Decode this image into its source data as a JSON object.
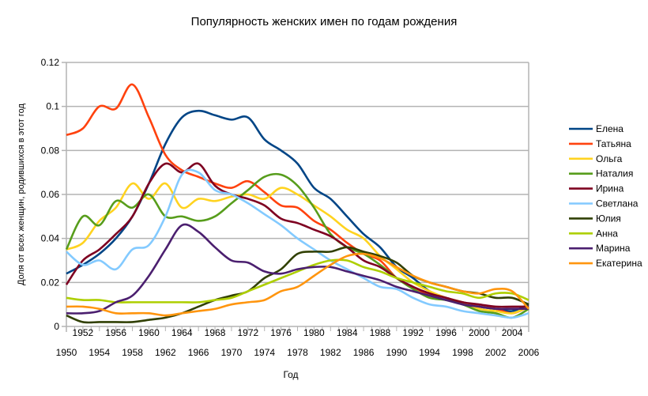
{
  "chart_data": {
    "type": "line",
    "title": "Популярность женских имен по годам рождения",
    "xlabel": "Год",
    "ylabel": "Доля от всех женщин, родившихся в этот год",
    "xlim": [
      1950,
      2006
    ],
    "ylim": [
      0,
      0.12
    ],
    "yticks": [
      "0",
      "0.02",
      "0.04",
      "0.06",
      "0.08",
      "0.1",
      "0.12"
    ],
    "xticks": [
      "1950",
      "1952",
      "1954",
      "1956",
      "1958",
      "1960",
      "1962",
      "1964",
      "1966",
      "1968",
      "1970",
      "1972",
      "1974",
      "1976",
      "1978",
      "1980",
      "1982",
      "1984",
      "1986",
      "1988",
      "1990",
      "1992",
      "1994",
      "1996",
      "1998",
      "2000",
      "2002",
      "2004",
      "2006"
    ],
    "grid": true,
    "legend_position": "right",
    "x": [
      1950,
      1952,
      1954,
      1956,
      1958,
      1960,
      1962,
      1964,
      1966,
      1968,
      1970,
      1972,
      1974,
      1976,
      1978,
      1980,
      1982,
      1984,
      1986,
      1988,
      1990,
      1992,
      1994,
      1996,
      1998,
      2000,
      2002,
      2004,
      2006
    ],
    "series": [
      {
        "name": "Елена",
        "color": "#004586",
        "values": [
          0.024,
          0.028,
          0.033,
          0.04,
          0.05,
          0.065,
          0.083,
          0.095,
          0.098,
          0.096,
          0.094,
          0.095,
          0.085,
          0.08,
          0.074,
          0.063,
          0.058,
          0.05,
          0.042,
          0.036,
          0.027,
          0.022,
          0.016,
          0.013,
          0.011,
          0.009,
          0.008,
          0.007,
          0.01
        ]
      },
      {
        "name": "Татьяна",
        "color": "#ff420e",
        "values": [
          0.087,
          0.09,
          0.1,
          0.099,
          0.11,
          0.095,
          0.078,
          0.071,
          0.068,
          0.065,
          0.063,
          0.066,
          0.061,
          0.055,
          0.054,
          0.048,
          0.044,
          0.038,
          0.033,
          0.03,
          0.022,
          0.018,
          0.014,
          0.012,
          0.011,
          0.009,
          0.008,
          0.006,
          0.009
        ]
      },
      {
        "name": "Ольга",
        "color": "#ffd320",
        "values": [
          0.035,
          0.038,
          0.048,
          0.054,
          0.065,
          0.058,
          0.065,
          0.054,
          0.058,
          0.057,
          0.059,
          0.06,
          0.058,
          0.063,
          0.06,
          0.055,
          0.05,
          0.044,
          0.04,
          0.032,
          0.026,
          0.02,
          0.016,
          0.013,
          0.011,
          0.008,
          0.007,
          0.006,
          0.009
        ]
      },
      {
        "name": "Наталия",
        "color": "#579d1c",
        "values": [
          0.035,
          0.05,
          0.046,
          0.057,
          0.054,
          0.06,
          0.05,
          0.05,
          0.048,
          0.05,
          0.056,
          0.062,
          0.068,
          0.069,
          0.064,
          0.054,
          0.042,
          0.036,
          0.033,
          0.028,
          0.022,
          0.017,
          0.013,
          0.012,
          0.01,
          0.007,
          0.006,
          0.004,
          0.008
        ]
      },
      {
        "name": "Ирина",
        "color": "#7e0021",
        "values": [
          0.019,
          0.03,
          0.035,
          0.042,
          0.05,
          0.065,
          0.074,
          0.07,
          0.074,
          0.064,
          0.06,
          0.058,
          0.055,
          0.049,
          0.047,
          0.044,
          0.041,
          0.036,
          0.03,
          0.027,
          0.022,
          0.018,
          0.015,
          0.013,
          0.011,
          0.01,
          0.009,
          0.009,
          0.009
        ]
      },
      {
        "name": "Светлана",
        "color": "#83caff",
        "values": [
          0.034,
          0.028,
          0.03,
          0.026,
          0.035,
          0.037,
          0.05,
          0.069,
          0.07,
          0.062,
          0.06,
          0.056,
          0.051,
          0.046,
          0.04,
          0.035,
          0.03,
          0.026,
          0.022,
          0.018,
          0.017,
          0.013,
          0.01,
          0.009,
          0.007,
          0.006,
          0.005,
          0.004,
          0.006
        ]
      },
      {
        "name": "Юлия",
        "color": "#314004",
        "values": [
          0.005,
          0.002,
          0.002,
          0.002,
          0.002,
          0.003,
          0.004,
          0.006,
          0.009,
          0.012,
          0.014,
          0.016,
          0.022,
          0.026,
          0.033,
          0.034,
          0.034,
          0.036,
          0.034,
          0.032,
          0.029,
          0.023,
          0.02,
          0.018,
          0.016,
          0.015,
          0.013,
          0.013,
          0.01
        ]
      },
      {
        "name": "Анна",
        "color": "#aecf00",
        "values": [
          0.013,
          0.012,
          0.012,
          0.011,
          0.011,
          0.011,
          0.011,
          0.011,
          0.011,
          0.012,
          0.013,
          0.016,
          0.019,
          0.022,
          0.025,
          0.028,
          0.03,
          0.03,
          0.027,
          0.025,
          0.022,
          0.02,
          0.018,
          0.016,
          0.015,
          0.013,
          0.015,
          0.015,
          0.012
        ]
      },
      {
        "name": "Марина",
        "color": "#4b1f6f",
        "values": [
          0.006,
          0.006,
          0.007,
          0.011,
          0.014,
          0.023,
          0.035,
          0.046,
          0.043,
          0.036,
          0.03,
          0.029,
          0.025,
          0.024,
          0.026,
          0.027,
          0.027,
          0.025,
          0.023,
          0.021,
          0.018,
          0.016,
          0.014,
          0.012,
          0.01,
          0.009,
          0.008,
          0.008,
          0.008
        ]
      },
      {
        "name": "Екатерина",
        "color": "#ff950e",
        "values": [
          0.009,
          0.009,
          0.008,
          0.006,
          0.006,
          0.006,
          0.005,
          0.006,
          0.007,
          0.008,
          0.01,
          0.011,
          0.012,
          0.016,
          0.018,
          0.023,
          0.028,
          0.032,
          0.033,
          0.031,
          0.027,
          0.023,
          0.02,
          0.018,
          0.016,
          0.015,
          0.017,
          0.016,
          0.008
        ]
      }
    ]
  }
}
